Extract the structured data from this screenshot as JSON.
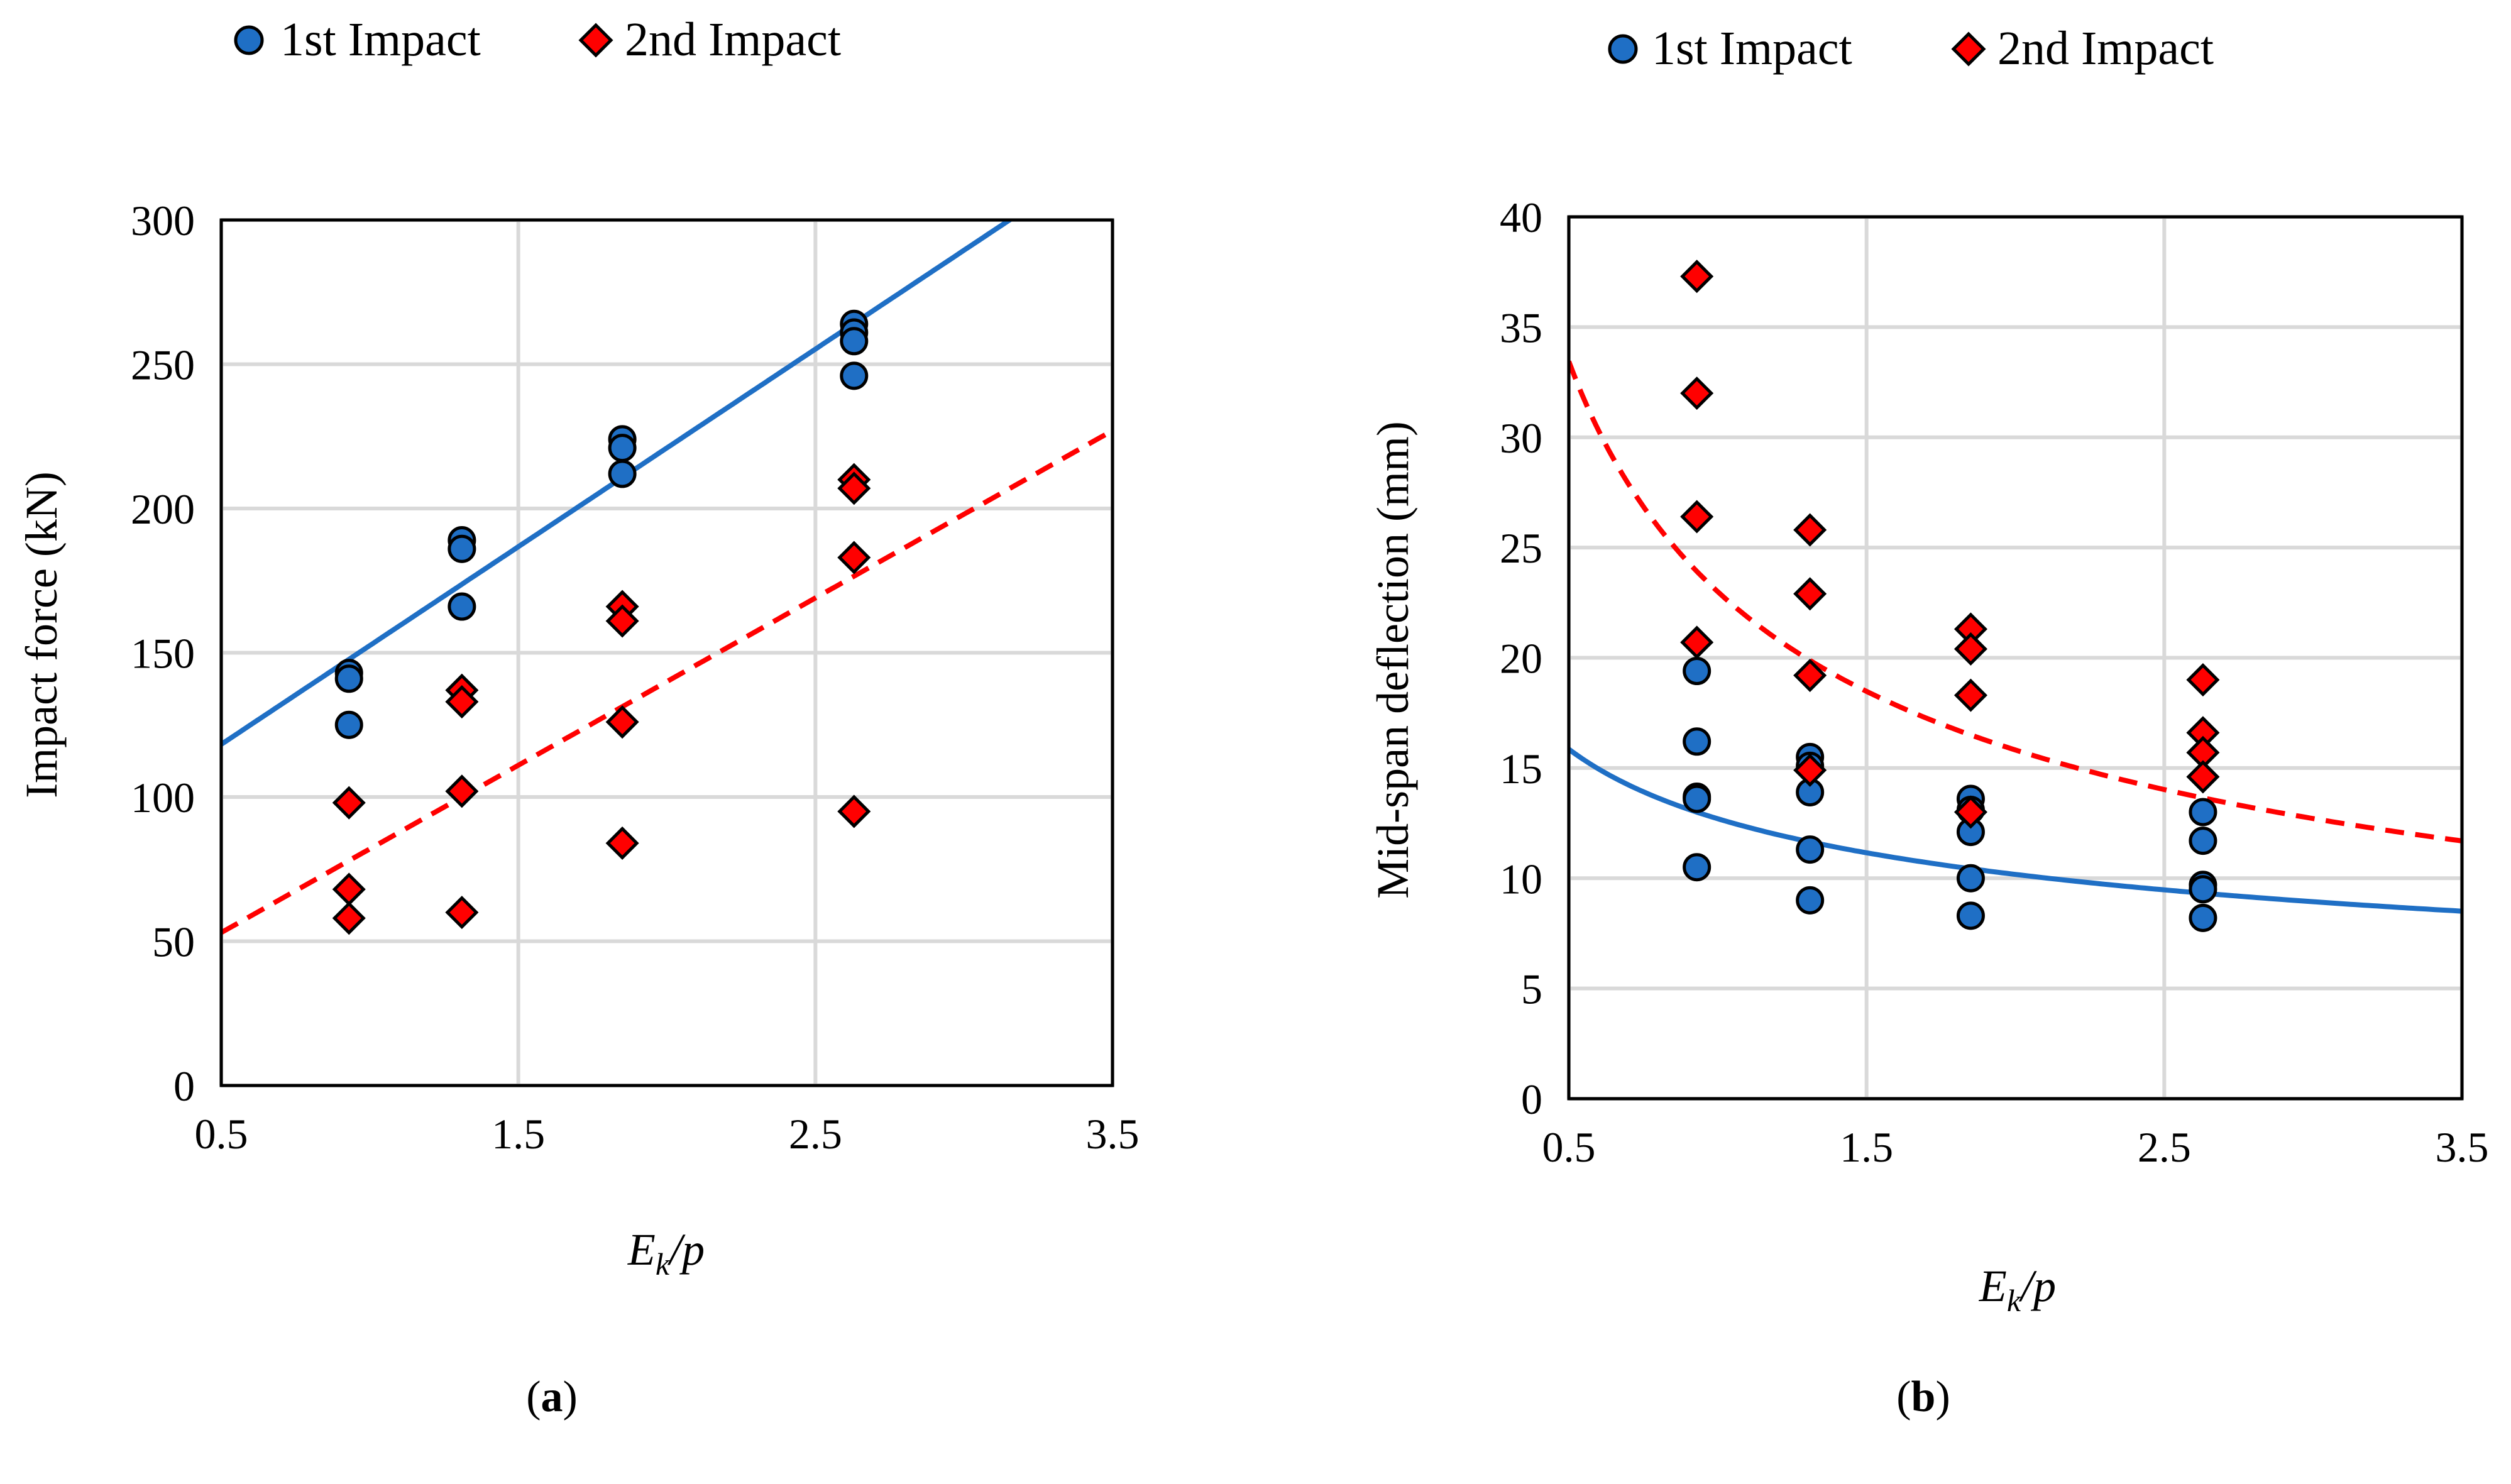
{
  "colors": {
    "series1": "#1f6fc5",
    "series2": "#ff0000",
    "marker_stroke": "#000000",
    "grid": "#d9d9d9"
  },
  "chart_data": [
    {
      "type": "scatter",
      "panel": "a",
      "caption_letter": "a",
      "caption_open": "(",
      "caption_close": ")",
      "ylabel": "Impact force (kN)",
      "xlabel_main": "E",
      "xlabel_sub": "k",
      "xlabel_tail": "/p",
      "xlim": [
        0.5,
        3.5
      ],
      "ylim": [
        0,
        300
      ],
      "xticks": [
        0.5,
        1.5,
        2.5,
        3.5
      ],
      "xtick_labels": [
        "0.5",
        "1.5",
        "2.5",
        "3.5"
      ],
      "yticks": [
        0,
        50,
        100,
        150,
        200,
        250,
        300
      ],
      "ytick_labels": [
        "0",
        "50",
        "100",
        "150",
        "200",
        "250",
        "300"
      ],
      "legend": [
        "1st Impact",
        "2nd Impact"
      ],
      "legend_position": "top-left",
      "series": [
        {
          "name": "1st Impact",
          "marker": "circle",
          "points": [
            [
              0.93,
              143
            ],
            [
              0.93,
              141
            ],
            [
              0.93,
              125
            ],
            [
              1.31,
              189
            ],
            [
              1.31,
              186
            ],
            [
              1.31,
              166
            ],
            [
              1.85,
              224
            ],
            [
              1.85,
              221
            ],
            [
              1.85,
              212
            ],
            [
              2.63,
              264
            ],
            [
              2.63,
              261
            ],
            [
              2.63,
              258
            ],
            [
              2.63,
              246
            ]
          ],
          "trend": {
            "kind": "linear",
            "style": "solid",
            "slope": 68.5,
            "intercept": 84
          }
        },
        {
          "name": "2nd Impact",
          "marker": "diamond",
          "points": [
            [
              0.93,
              98
            ],
            [
              0.93,
              68
            ],
            [
              0.93,
              58
            ],
            [
              1.31,
              137
            ],
            [
              1.31,
              133
            ],
            [
              1.31,
              102
            ],
            [
              1.31,
              60
            ],
            [
              1.85,
              166
            ],
            [
              1.85,
              161
            ],
            [
              1.85,
              126
            ],
            [
              1.85,
              84
            ],
            [
              2.63,
              210
            ],
            [
              2.63,
              207
            ],
            [
              2.63,
              183
            ],
            [
              2.63,
              95
            ]
          ],
          "trend": {
            "kind": "linear",
            "style": "dashed",
            "slope": 58,
            "intercept": 24
          }
        }
      ]
    },
    {
      "type": "scatter",
      "panel": "b",
      "caption_letter": "b",
      "caption_open": "(",
      "caption_close": ")",
      "ylabel": "Mid-span deflection (mm)",
      "xlabel_main": "E",
      "xlabel_sub": "k",
      "xlabel_tail": "/p",
      "xlim": [
        0.5,
        3.5
      ],
      "ylim": [
        0,
        40
      ],
      "xticks": [
        0.5,
        1.5,
        2.5,
        3.5
      ],
      "xtick_labels": [
        "0.5",
        "1.5",
        "2.5",
        "3.5"
      ],
      "yticks": [
        0,
        5,
        10,
        15,
        20,
        25,
        30,
        35,
        40
      ],
      "ytick_labels": [
        "0",
        "5",
        "10",
        "15",
        "20",
        "25",
        "30",
        "35",
        "40"
      ],
      "legend": [
        "1st Impact",
        "2nd Impact"
      ],
      "legend_position": "top-center",
      "series": [
        {
          "name": "1st Impact",
          "marker": "circle",
          "points": [
            [
              0.93,
              19.4
            ],
            [
              0.93,
              16.2
            ],
            [
              0.93,
              13.7
            ],
            [
              0.93,
              13.6
            ],
            [
              0.93,
              10.5
            ],
            [
              1.31,
              15.5
            ],
            [
              1.31,
              15.1
            ],
            [
              1.31,
              13.9
            ],
            [
              1.31,
              11.3
            ],
            [
              1.31,
              9.0
            ],
            [
              1.85,
              13.6
            ],
            [
              1.85,
              13.1
            ],
            [
              1.85,
              12.1
            ],
            [
              1.85,
              10.0
            ],
            [
              1.85,
              8.3
            ],
            [
              2.63,
              13.0
            ],
            [
              2.63,
              11.7
            ],
            [
              2.63,
              9.7
            ],
            [
              2.63,
              9.5
            ],
            [
              2.63,
              8.2
            ]
          ],
          "trend": {
            "kind": "power",
            "style": "solid",
            "a": 12.7,
            "b": -0.32
          }
        },
        {
          "name": "2nd Impact",
          "marker": "diamond",
          "points": [
            [
              0.93,
              37.3
            ],
            [
              0.93,
              32.0
            ],
            [
              0.93,
              26.4
            ],
            [
              0.93,
              20.7
            ],
            [
              1.31,
              25.8
            ],
            [
              1.31,
              22.9
            ],
            [
              1.31,
              19.2
            ],
            [
              1.31,
              14.9
            ],
            [
              1.85,
              21.3
            ],
            [
              1.85,
              20.4
            ],
            [
              1.85,
              18.3
            ],
            [
              1.85,
              13.0
            ],
            [
              2.63,
              19.0
            ],
            [
              2.63,
              16.6
            ],
            [
              2.63,
              15.7
            ],
            [
              2.63,
              14.6
            ]
          ],
          "trend": {
            "kind": "power",
            "style": "dashed",
            "a": 23.0,
            "b": -0.54
          }
        }
      ]
    }
  ]
}
